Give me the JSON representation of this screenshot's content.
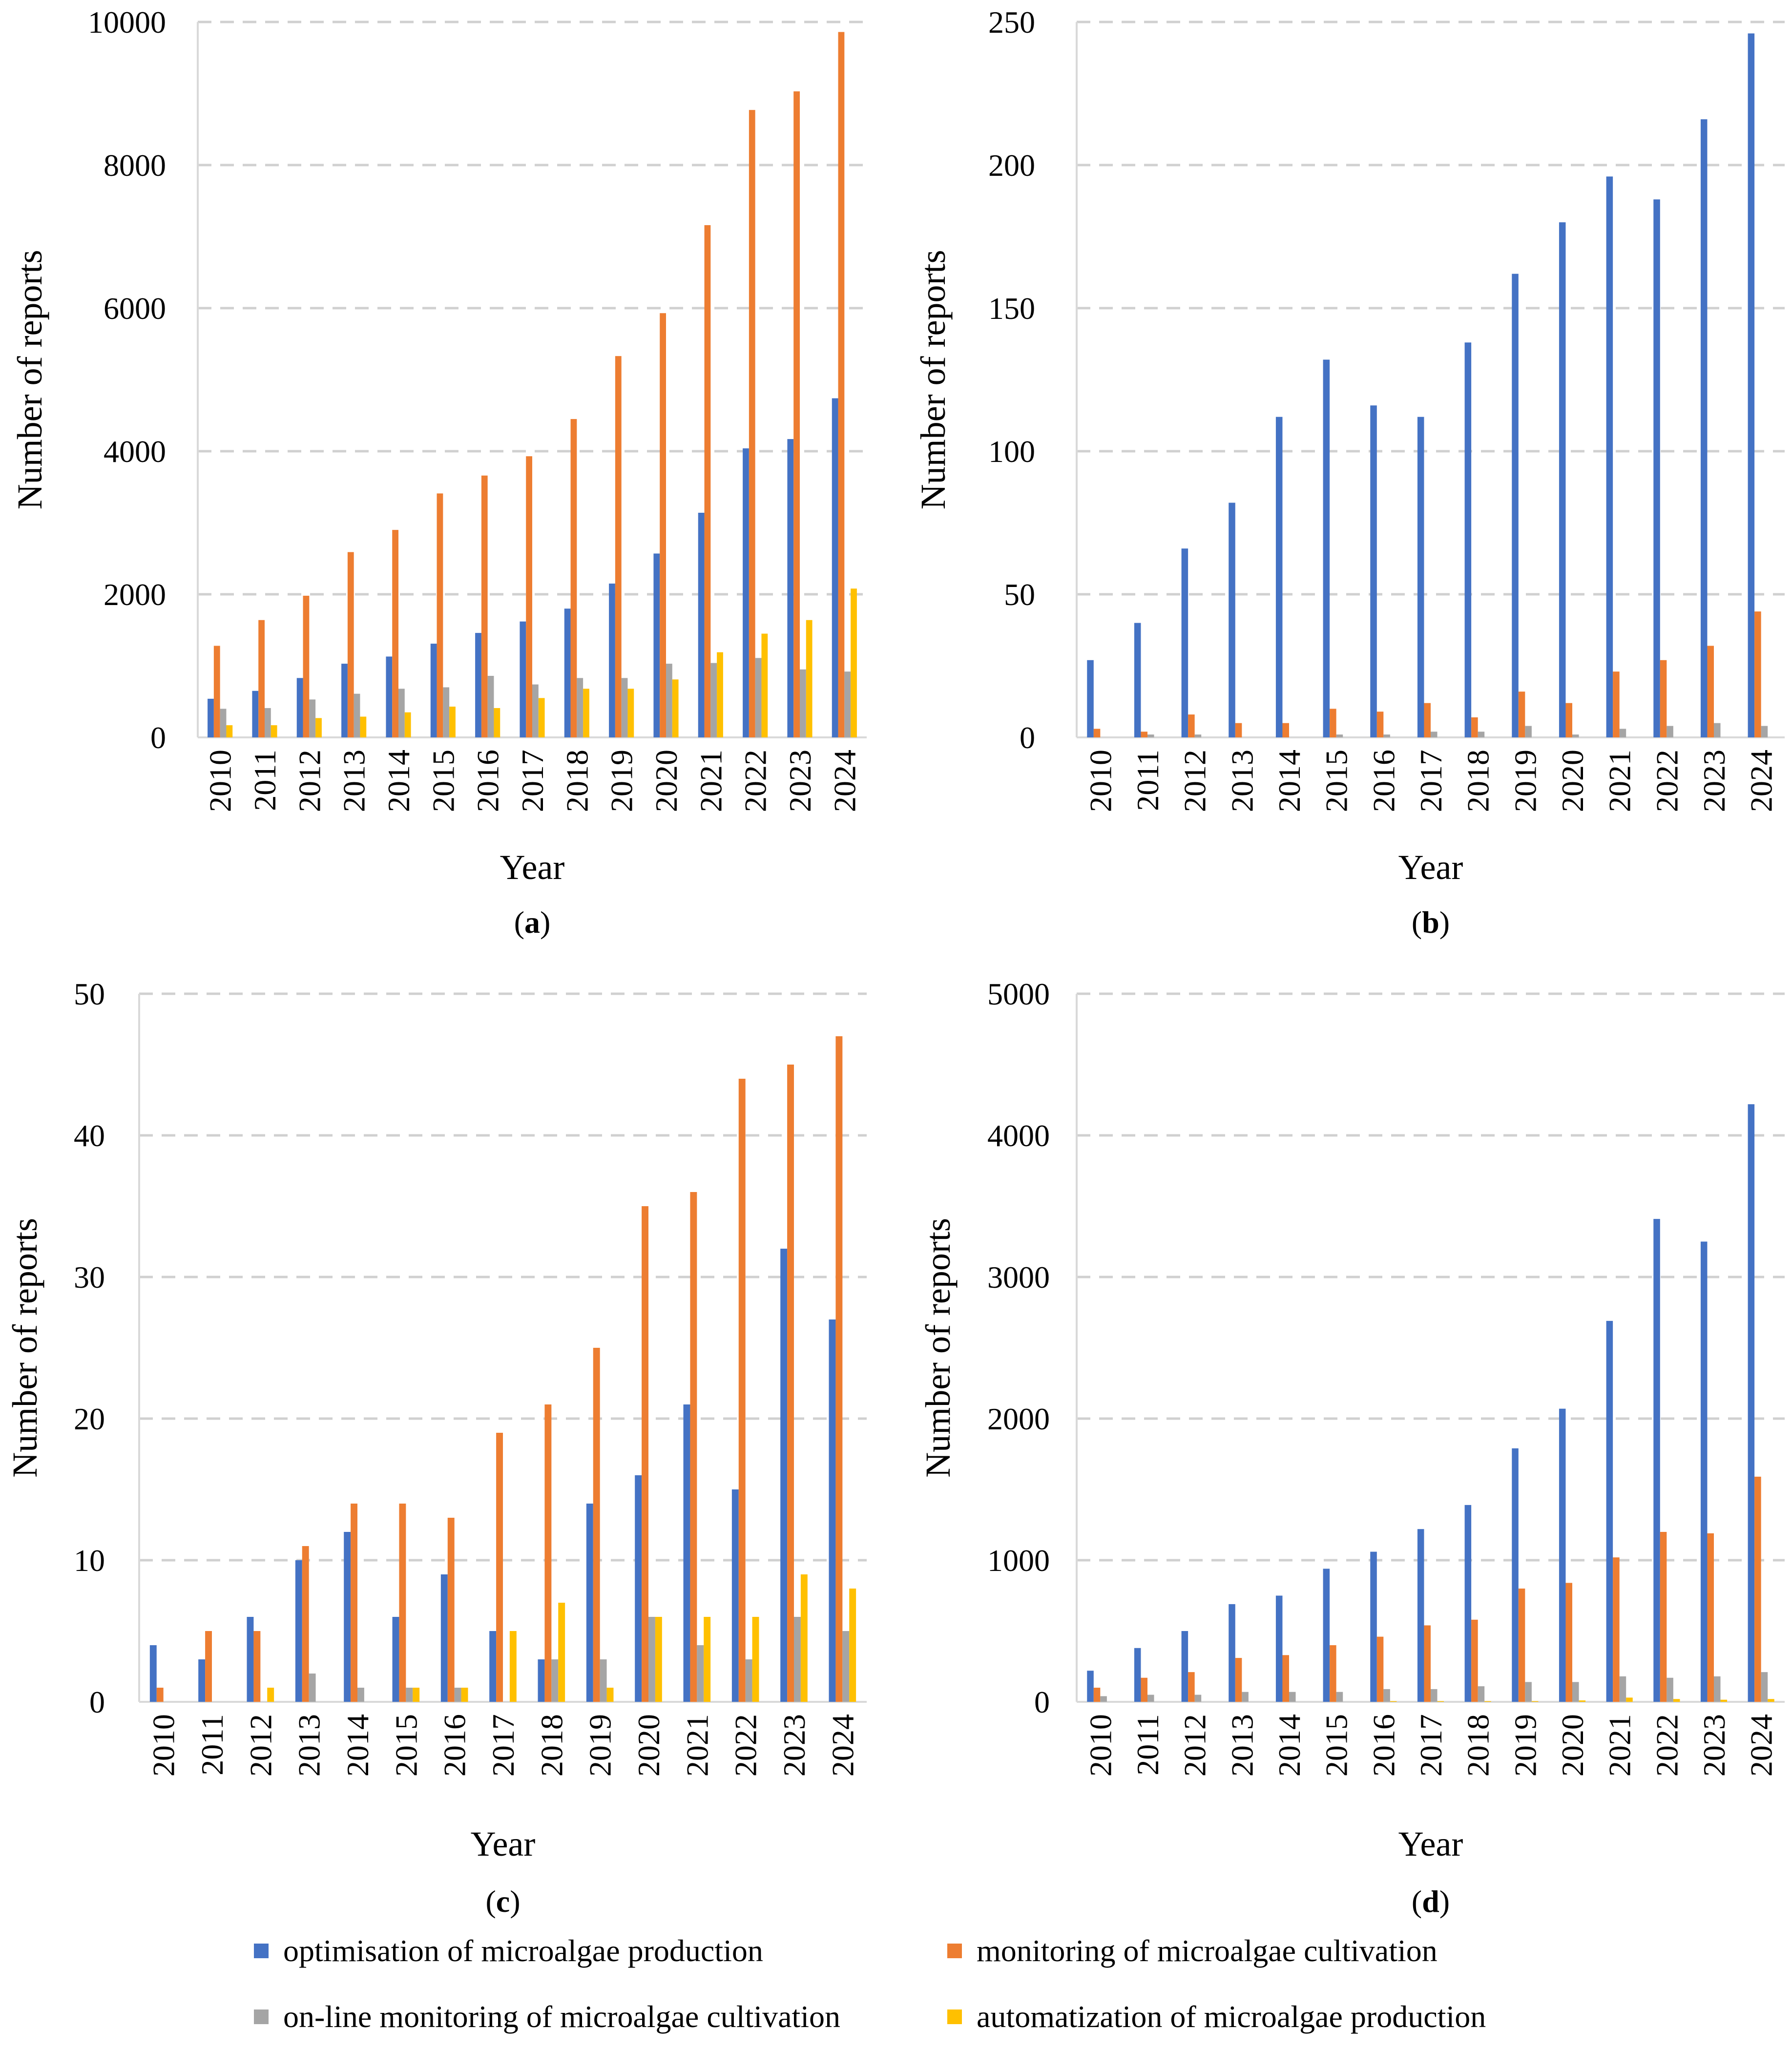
{
  "colors": {
    "optimisation": "#4472C4",
    "monitoring": "#ED7D31",
    "online": "#A5A5A5",
    "automatization": "#FFC000",
    "grid": "#D0D0D0",
    "axis": "#D9D9D9"
  },
  "legend": [
    {
      "key": "optimisation",
      "label": "optimisation of microalgae production"
    },
    {
      "key": "monitoring",
      "label": "monitoring of microalgae cultivation"
    },
    {
      "key": "online",
      "label": "on-line monitoring of microalgae cultivation"
    },
    {
      "key": "automatization",
      "label": "automatization of microalgae production"
    }
  ],
  "chart_data": [
    {
      "type": "bar",
      "panel_label": "(a)",
      "panel_letter": "a",
      "xlabel": "Year",
      "ylabel": "Number of reports",
      "ylim": [
        0,
        10000
      ],
      "yticks": [
        0,
        2000,
        4000,
        6000,
        8000,
        10000
      ],
      "categories": [
        "2010",
        "2011",
        "2012",
        "2013",
        "2014",
        "2015",
        "2016",
        "2017",
        "2018",
        "2019",
        "2020",
        "2021",
        "2022",
        "2023",
        "2024"
      ],
      "series": [
        {
          "key": "optimisation",
          "name": "optimisation of microalgae production",
          "values": [
            540,
            650,
            830,
            1030,
            1130,
            1310,
            1460,
            1620,
            1800,
            2150,
            2570,
            3140,
            4040,
            4170,
            4740
          ]
        },
        {
          "key": "monitoring",
          "name": "monitoring of microalgae cultivation",
          "values": [
            1280,
            1640,
            1980,
            2590,
            2900,
            3410,
            3660,
            3930,
            4450,
            5330,
            5930,
            7160,
            8770,
            9030,
            9860
          ]
        },
        {
          "key": "online",
          "name": "on-line monitoring of microalgae cultivation",
          "values": [
            400,
            410,
            530,
            610,
            680,
            700,
            860,
            740,
            830,
            830,
            1030,
            1040,
            1110,
            950,
            920
          ]
        },
        {
          "key": "automatization",
          "name": "automatization of microalgae production",
          "values": [
            170,
            170,
            270,
            290,
            350,
            430,
            410,
            550,
            680,
            680,
            810,
            1190,
            1450,
            1640,
            2080
          ]
        }
      ]
    },
    {
      "type": "bar",
      "panel_label": "(b)",
      "panel_letter": "b",
      "xlabel": "Year",
      "ylabel": "Number of reports",
      "ylim": [
        0,
        250
      ],
      "yticks": [
        0,
        50,
        100,
        150,
        200,
        250
      ],
      "categories": [
        "2010",
        "2011",
        "2012",
        "2013",
        "2014",
        "2015",
        "2016",
        "2017",
        "2018",
        "2019",
        "2020",
        "2021",
        "2022",
        "2023",
        "2024"
      ],
      "series": [
        {
          "key": "optimisation",
          "name": "optimisation of microalgae production",
          "values": [
            27,
            40,
            66,
            82,
            112,
            132,
            116,
            112,
            138,
            162,
            180,
            196,
            188,
            216,
            246
          ]
        },
        {
          "key": "monitoring",
          "name": "monitoring of microalgae cultivation",
          "values": [
            3,
            2,
            8,
            5,
            5,
            10,
            9,
            12,
            7,
            16,
            12,
            23,
            27,
            32,
            44
          ]
        },
        {
          "key": "online",
          "name": "on-line monitoring of microalgae cultivation",
          "values": [
            0,
            1,
            1,
            0,
            0,
            1,
            1,
            2,
            2,
            4,
            1,
            3,
            4,
            5,
            4
          ]
        },
        {
          "key": "automatization",
          "name": "automatization of microalgae production",
          "values": [
            0,
            0,
            0,
            0,
            0,
            0,
            0,
            0,
            0,
            0,
            0,
            0,
            0,
            0,
            0
          ]
        }
      ]
    },
    {
      "type": "bar",
      "panel_label": "(c)",
      "panel_letter": "c",
      "xlabel": "Year",
      "ylabel": "Number of reports",
      "ylim": [
        0,
        50
      ],
      "yticks": [
        0,
        10,
        20,
        30,
        40,
        50
      ],
      "categories": [
        "2010",
        "2011",
        "2012",
        "2013",
        "2014",
        "2015",
        "2016",
        "2017",
        "2018",
        "2019",
        "2020",
        "2021",
        "2022",
        "2023",
        "2024"
      ],
      "series": [
        {
          "key": "optimisation",
          "name": "optimisation of microalgae production",
          "values": [
            4,
            3,
            6,
            10,
            12,
            6,
            9,
            5,
            3,
            14,
            16,
            21,
            15,
            32,
            27
          ]
        },
        {
          "key": "monitoring",
          "name": "monitoring of microalgae cultivation",
          "values": [
            1,
            5,
            5,
            11,
            14,
            14,
            13,
            19,
            21,
            25,
            35,
            36,
            44,
            45,
            47
          ]
        },
        {
          "key": "online",
          "name": "on-line monitoring of microalgae cultivation",
          "values": [
            0,
            0,
            0,
            2,
            1,
            1,
            1,
            0,
            3,
            3,
            6,
            4,
            3,
            6,
            5
          ]
        },
        {
          "key": "automatization",
          "name": "automatization of microalgae production",
          "values": [
            0,
            0,
            1,
            0,
            0,
            1,
            1,
            5,
            7,
            1,
            6,
            6,
            6,
            9,
            8
          ]
        }
      ]
    },
    {
      "type": "bar",
      "panel_label": "(d)",
      "panel_letter": "d",
      "xlabel": "Year",
      "ylabel": "Number of reports",
      "ylim": [
        0,
        5000
      ],
      "yticks": [
        0,
        1000,
        2000,
        3000,
        4000,
        5000
      ],
      "categories": [
        "2010",
        "2011",
        "2012",
        "2013",
        "2014",
        "2015",
        "2016",
        "2017",
        "2018",
        "2019",
        "2020",
        "2021",
        "2022",
        "2023",
        "2024"
      ],
      "series": [
        {
          "key": "optimisation",
          "name": "optimisation of microalgae production",
          "values": [
            220,
            380,
            500,
            690,
            750,
            940,
            1060,
            1220,
            1390,
            1790,
            2070,
            2690,
            3410,
            3250,
            4220
          ]
        },
        {
          "key": "monitoring",
          "name": "monitoring of microalgae cultivation",
          "values": [
            100,
            170,
            210,
            310,
            330,
            400,
            460,
            540,
            580,
            800,
            840,
            1020,
            1200,
            1190,
            1590
          ]
        },
        {
          "key": "online",
          "name": "on-line monitoring of microalgae cultivation",
          "values": [
            40,
            50,
            50,
            70,
            70,
            70,
            90,
            90,
            110,
            140,
            140,
            180,
            170,
            180,
            210
          ]
        },
        {
          "key": "automatization",
          "name": "automatization of microalgae production",
          "values": [
            0,
            0,
            0,
            0,
            0,
            0,
            5,
            5,
            5,
            5,
            10,
            30,
            20,
            15,
            20
          ]
        }
      ]
    }
  ]
}
